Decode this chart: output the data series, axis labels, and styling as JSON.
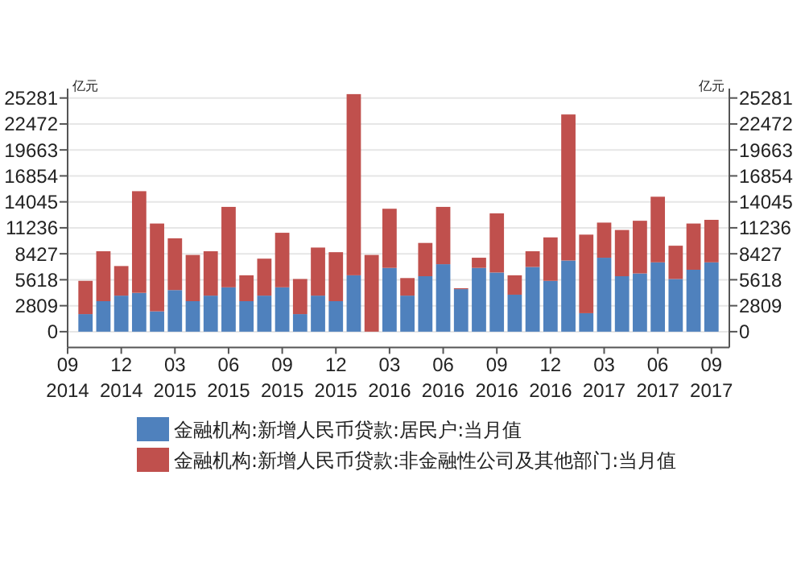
{
  "chart_data": {
    "type": "bar",
    "stacked": true,
    "x": [
      "2014-10",
      "2014-11",
      "2014-12",
      "2015-01",
      "2015-02",
      "2015-03",
      "2015-04",
      "2015-05",
      "2015-06",
      "2015-07",
      "2015-08",
      "2015-09",
      "2015-10",
      "2015-11",
      "2015-12",
      "2016-01",
      "2016-02",
      "2016-03",
      "2016-04",
      "2016-05",
      "2016-06",
      "2016-07",
      "2016-08",
      "2016-09",
      "2016-10",
      "2016-11",
      "2016-12",
      "2017-01",
      "2017-02",
      "2017-03",
      "2017-04",
      "2017-05",
      "2017-06",
      "2017-07",
      "2017-08",
      "2017-09"
    ],
    "xlim": [
      "2014-09",
      "2017-10"
    ],
    "xticks": [
      {
        "value": "2014-09",
        "label": "09 2014"
      },
      {
        "value": "2014-12",
        "label": "12 2014"
      },
      {
        "value": "2015-03",
        "label": "03 2015"
      },
      {
        "value": "2015-06",
        "label": "06 2015"
      },
      {
        "value": "2015-09",
        "label": "09 2015"
      },
      {
        "value": "2015-12",
        "label": "12 2015"
      },
      {
        "value": "2016-03",
        "label": "03 2016"
      },
      {
        "value": "2016-06",
        "label": "06 2016"
      },
      {
        "value": "2016-09",
        "label": "09 2016"
      },
      {
        "value": "2016-12",
        "label": "12 2016"
      },
      {
        "value": "2017-03",
        "label": "03 2017"
      },
      {
        "value": "2017-06",
        "label": "06 2017"
      },
      {
        "value": "2017-09",
        "label": "09 2017"
      }
    ],
    "ylabel": "亿元",
    "y2label": "亿元",
    "ylim": [
      -1700,
      26300
    ],
    "yticks": [
      0,
      2809,
      5618,
      8427,
      11236,
      14045,
      16854,
      19663,
      22472,
      25281
    ],
    "y2lim": [
      -1700,
      26300
    ],
    "y2ticks": [
      0,
      2809,
      5618,
      8427,
      11236,
      14045,
      16854,
      19663,
      22472,
      25281
    ],
    "grid": "y",
    "legend": "bottom",
    "series": [
      {
        "name": "金融机构:新增人民币贷款:居民户:当月值",
        "color": "#4f81bd",
        "values": [
          1900,
          3300,
          3900,
          4200,
          2200,
          4500,
          3300,
          3900,
          4800,
          3300,
          3900,
          4800,
          1900,
          3900,
          3300,
          6100,
          0,
          6900,
          3900,
          6000,
          7300,
          4600,
          6900,
          6400,
          4000,
          7000,
          5500,
          7700,
          2000,
          8000,
          6000,
          6300,
          7500,
          5700,
          6700,
          7500
        ]
      },
      {
        "name": "金融机构:新增人民币贷款:非金融性公司及其他部门:当月值",
        "color": "#c0504d",
        "values": [
          3600,
          5400,
          3200,
          11000,
          9500,
          5600,
          5000,
          4800,
          8700,
          2800,
          4000,
          5900,
          3800,
          5200,
          5300,
          19600,
          8300,
          6400,
          1900,
          3600,
          6200,
          100,
          1100,
          6400,
          2100,
          1700,
          4700,
          15800,
          8500,
          3800,
          5000,
          5700,
          7100,
          3600,
          5000,
          4600
        ]
      }
    ]
  }
}
